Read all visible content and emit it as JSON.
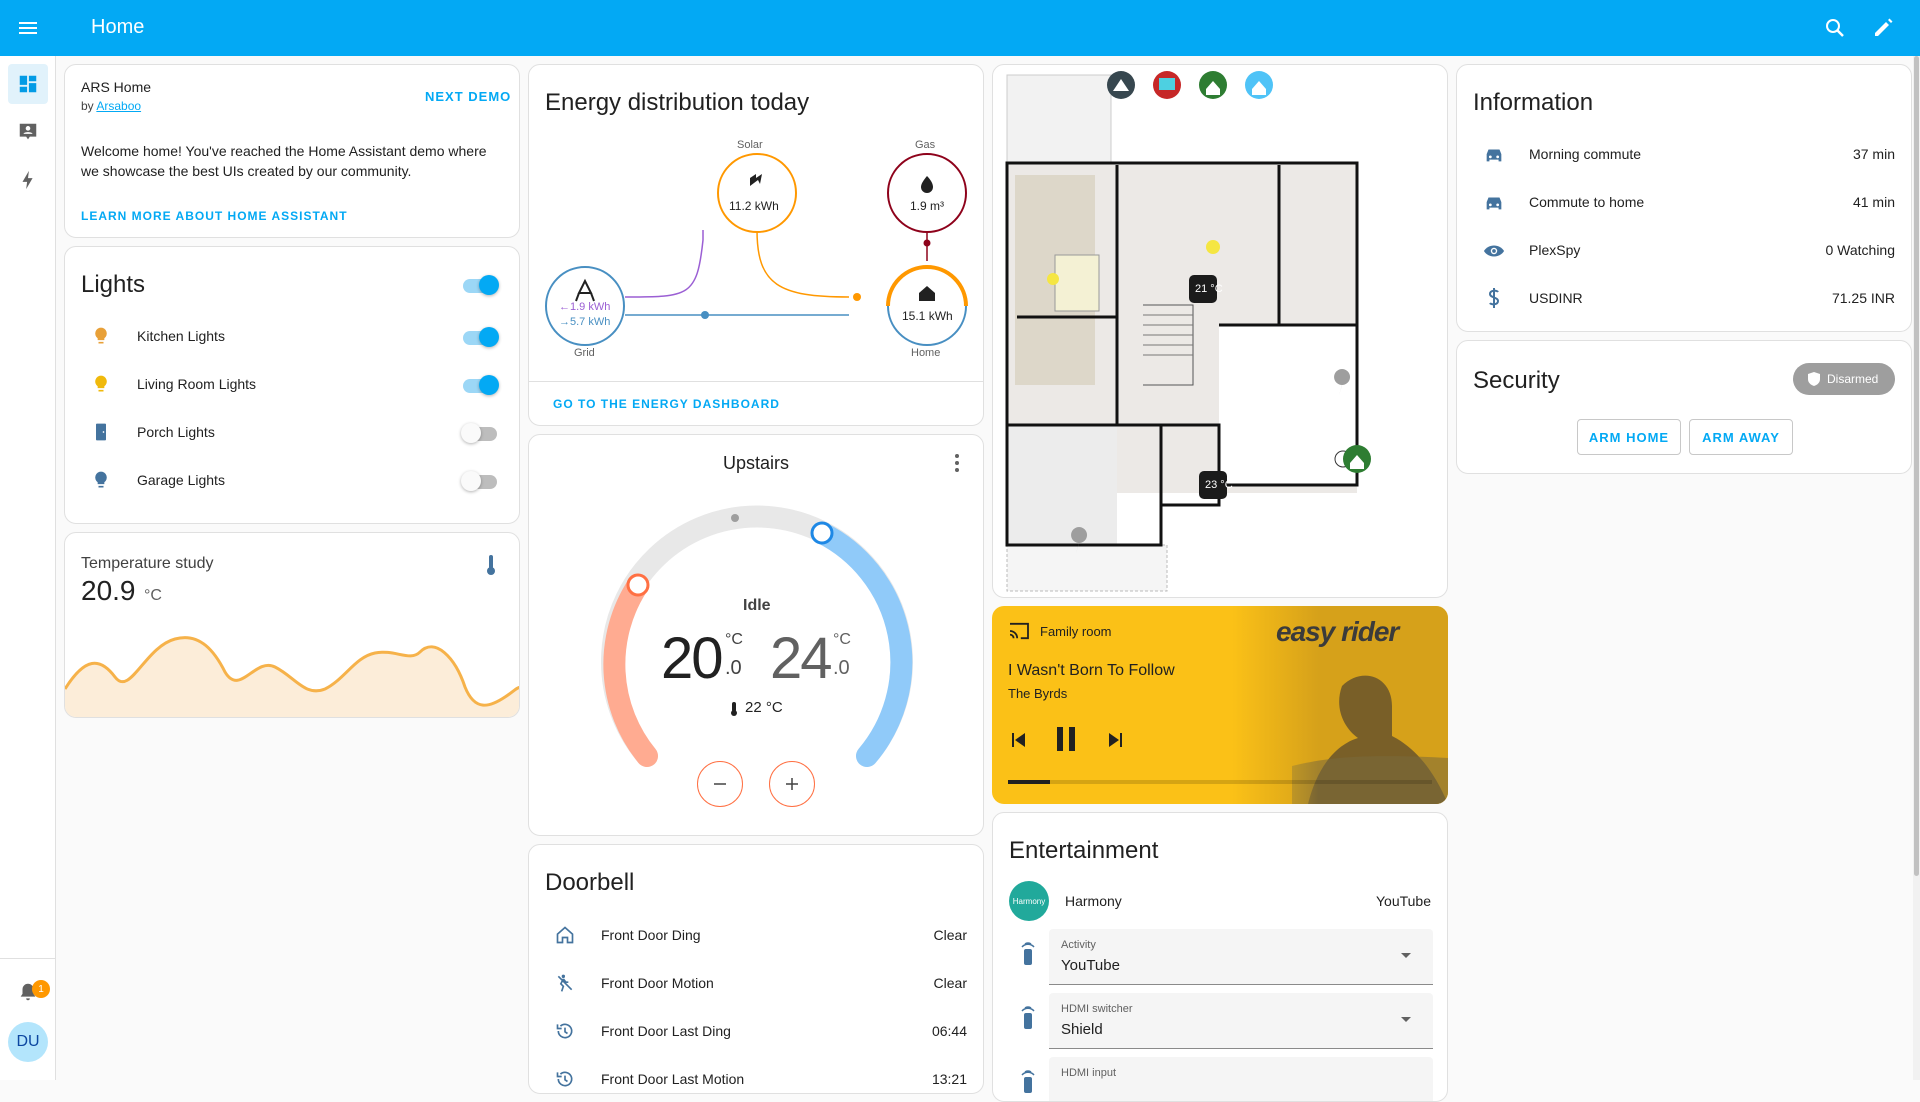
{
  "app": {
    "title": "Home"
  },
  "sidebar": {
    "badge_count": "1",
    "user_initials": "DU"
  },
  "intro": {
    "name": "ARS Home",
    "by_prefix": "by",
    "author": "Arsaboo",
    "next_demo": "NEXT DEMO",
    "welcome_line1": "Welcome home! You've reached the Home Assistant demo where",
    "welcome_line2": "we showcase the best UIs created by our community.",
    "learn_more": "LEARN MORE ABOUT HOME ASSISTANT"
  },
  "lights": {
    "title": "Lights",
    "items": [
      {
        "label": "Kitchen Lights",
        "on": true
      },
      {
        "label": "Living Room Lights",
        "on": true
      },
      {
        "label": "Porch Lights",
        "on": false
      },
      {
        "label": "Garage Lights",
        "on": false
      }
    ]
  },
  "temperature": {
    "title": "Temperature study",
    "value": "20.9",
    "unit": "°C"
  },
  "energy": {
    "title": "Energy distribution today",
    "solar_label": "Solar",
    "solar_value": "11.2 kWh",
    "gas_label": "Gas",
    "gas_value": "1.9 m³",
    "grid_label": "Grid",
    "grid_in": "←1.9 kWh",
    "grid_out": "→5.7 kWh",
    "home_label": "Home",
    "home_value": "15.1 kWh",
    "dashboard_link": "GO TO THE ENERGY DASHBOARD"
  },
  "thermostat": {
    "title": "Upstairs",
    "state": "Idle",
    "low_int": "20",
    "low_dec": ".0",
    "high_int": "24",
    "high_dec": ".0",
    "unit": "°C",
    "current": "22 °C"
  },
  "doorbell": {
    "title": "Doorbell",
    "rows": [
      {
        "label": "Front Door Ding",
        "value": "Clear"
      },
      {
        "label": "Front Door Motion",
        "value": "Clear"
      },
      {
        "label": "Front Door Last Ding",
        "value": "06:44"
      },
      {
        "label": "Front Door Last Motion",
        "value": "13:21"
      }
    ]
  },
  "floorplan": {
    "temp1": "21 °C",
    "temp2": "23 °C"
  },
  "media": {
    "room": "Family room",
    "song": "I Wasn't Born To Follow",
    "artist": "The Byrds",
    "art_title": "easy rider",
    "progress": 0.1,
    "colors": {
      "background": "#fbc117"
    }
  },
  "entertainment": {
    "title": "Entertainment",
    "harmony_label": "Harmony",
    "harmony_value": "YouTube",
    "activity_label": "Activity",
    "activity_value": "YouTube",
    "hdmi_switch_label": "HDMI switcher",
    "hdmi_switch_value": "Shield",
    "hdmi_input_label": "HDMI input"
  },
  "information": {
    "title": "Information",
    "rows": [
      {
        "label": "Morning commute",
        "value": "37 min"
      },
      {
        "label": "Commute to home",
        "value": "41 min"
      },
      {
        "label": "PlexSpy",
        "value": "0 Watching"
      },
      {
        "label": "USDINR",
        "value": "71.25 INR"
      }
    ]
  },
  "security": {
    "title": "Security",
    "state": "Disarmed",
    "arm_home": "ARM HOME",
    "arm_away": "ARM AWAY"
  }
}
